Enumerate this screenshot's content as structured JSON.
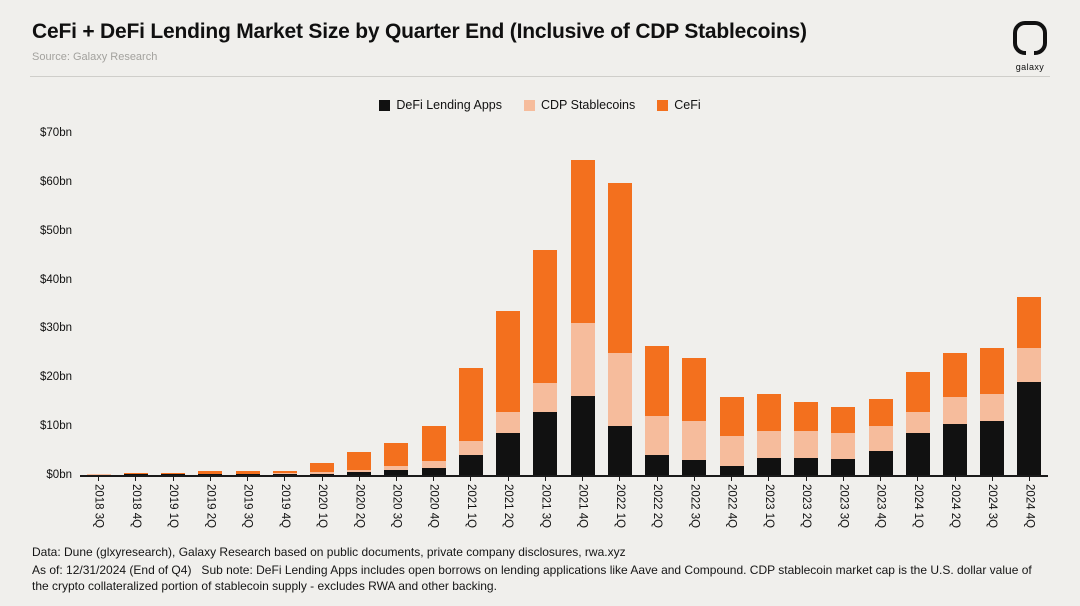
{
  "header": {
    "title": "CeFi + DeFi Lending Market Size by Quarter End (Inclusive of CDP Stablecoins)",
    "source": "Source: Galaxy Research",
    "brand": "galaxy"
  },
  "footer": {
    "line1": "Data: Dune (glxyresearch), Galaxy Research based on public documents, private company disclosures, rwa.xyz",
    "line2": "As of: 12/31/2024 (End of Q4)   Sub note: DeFi Lending Apps includes open borrows on lending applications like Aave and Compound. CDP stablecoin market cap is the U.S. dollar value of the crypto collateralized portion of stablecoin supply - excludes RWA and other backing."
  },
  "colors": {
    "background": "#f0efec",
    "defi": "#111111",
    "cdp": "#f6bc9c",
    "cefi": "#f3701e",
    "axis": "#1a1a1a"
  },
  "chart_data": {
    "type": "bar",
    "stacked": true,
    "title": "CeFi + DeFi Lending Market Size by Quarter End (Inclusive of CDP Stablecoins)",
    "xlabel": "",
    "ylabel": "",
    "ylim": [
      0,
      70
    ],
    "grid": false,
    "legend_position": "top-center",
    "yticks": [
      {
        "label": "$0bn",
        "value": 0
      },
      {
        "label": "$10bn",
        "value": 10
      },
      {
        "label": "$20bn",
        "value": 20
      },
      {
        "label": "$30bn",
        "value": 30
      },
      {
        "label": "$40bn",
        "value": 40
      },
      {
        "label": "$50bn",
        "value": 50
      },
      {
        "label": "$60bn",
        "value": 60
      },
      {
        "label": "$70bn",
        "value": 70
      }
    ],
    "categories": [
      "2018 3Q",
      "2018 4Q",
      "2019 1Q",
      "2019 2Q",
      "2019 3Q",
      "2019 4Q",
      "2020 1Q",
      "2020 2Q",
      "2020 3Q",
      "2020 4Q",
      "2021 1Q",
      "2021 2Q",
      "2021 3Q",
      "2021 4Q",
      "2022 1Q",
      "2022 2Q",
      "2022 3Q",
      "2022 4Q",
      "2023 1Q",
      "2023 2Q",
      "2023 3Q",
      "2023 4Q",
      "2024 1Q",
      "2024 2Q",
      "2024 3Q",
      "2024 4Q"
    ],
    "series": [
      {
        "name": "DeFi Lending Apps",
        "color": "#111111",
        "values": [
          0.1,
          0.15,
          0.15,
          0.2,
          0.2,
          0.25,
          0.3,
          0.6,
          1.0,
          1.5,
          4.0,
          8.5,
          12.8,
          16.2,
          10.0,
          4.0,
          3.0,
          1.8,
          3.5,
          3.5,
          3.2,
          5.0,
          8.5,
          10.5,
          11.0,
          19.0
        ]
      },
      {
        "name": "CDP Stablecoins",
        "color": "#f6bc9c",
        "values": [
          0.05,
          0.1,
          0.1,
          0.1,
          0.1,
          0.15,
          0.3,
          0.5,
          0.8,
          1.3,
          3.0,
          4.5,
          6.0,
          15.0,
          15.0,
          8.0,
          8.0,
          6.2,
          5.5,
          5.5,
          5.3,
          5.0,
          4.5,
          5.5,
          5.5,
          7.0
        ]
      },
      {
        "name": "CeFi",
        "color": "#f3701e",
        "values": [
          0.15,
          0.15,
          0.25,
          0.5,
          0.5,
          0.5,
          1.9,
          3.7,
          4.7,
          7.2,
          15.0,
          20.5,
          27.2,
          33.3,
          34.8,
          14.5,
          13.0,
          8.0,
          7.5,
          6.0,
          5.5,
          5.5,
          8.0,
          9.0,
          9.5,
          10.5
        ]
      }
    ]
  }
}
